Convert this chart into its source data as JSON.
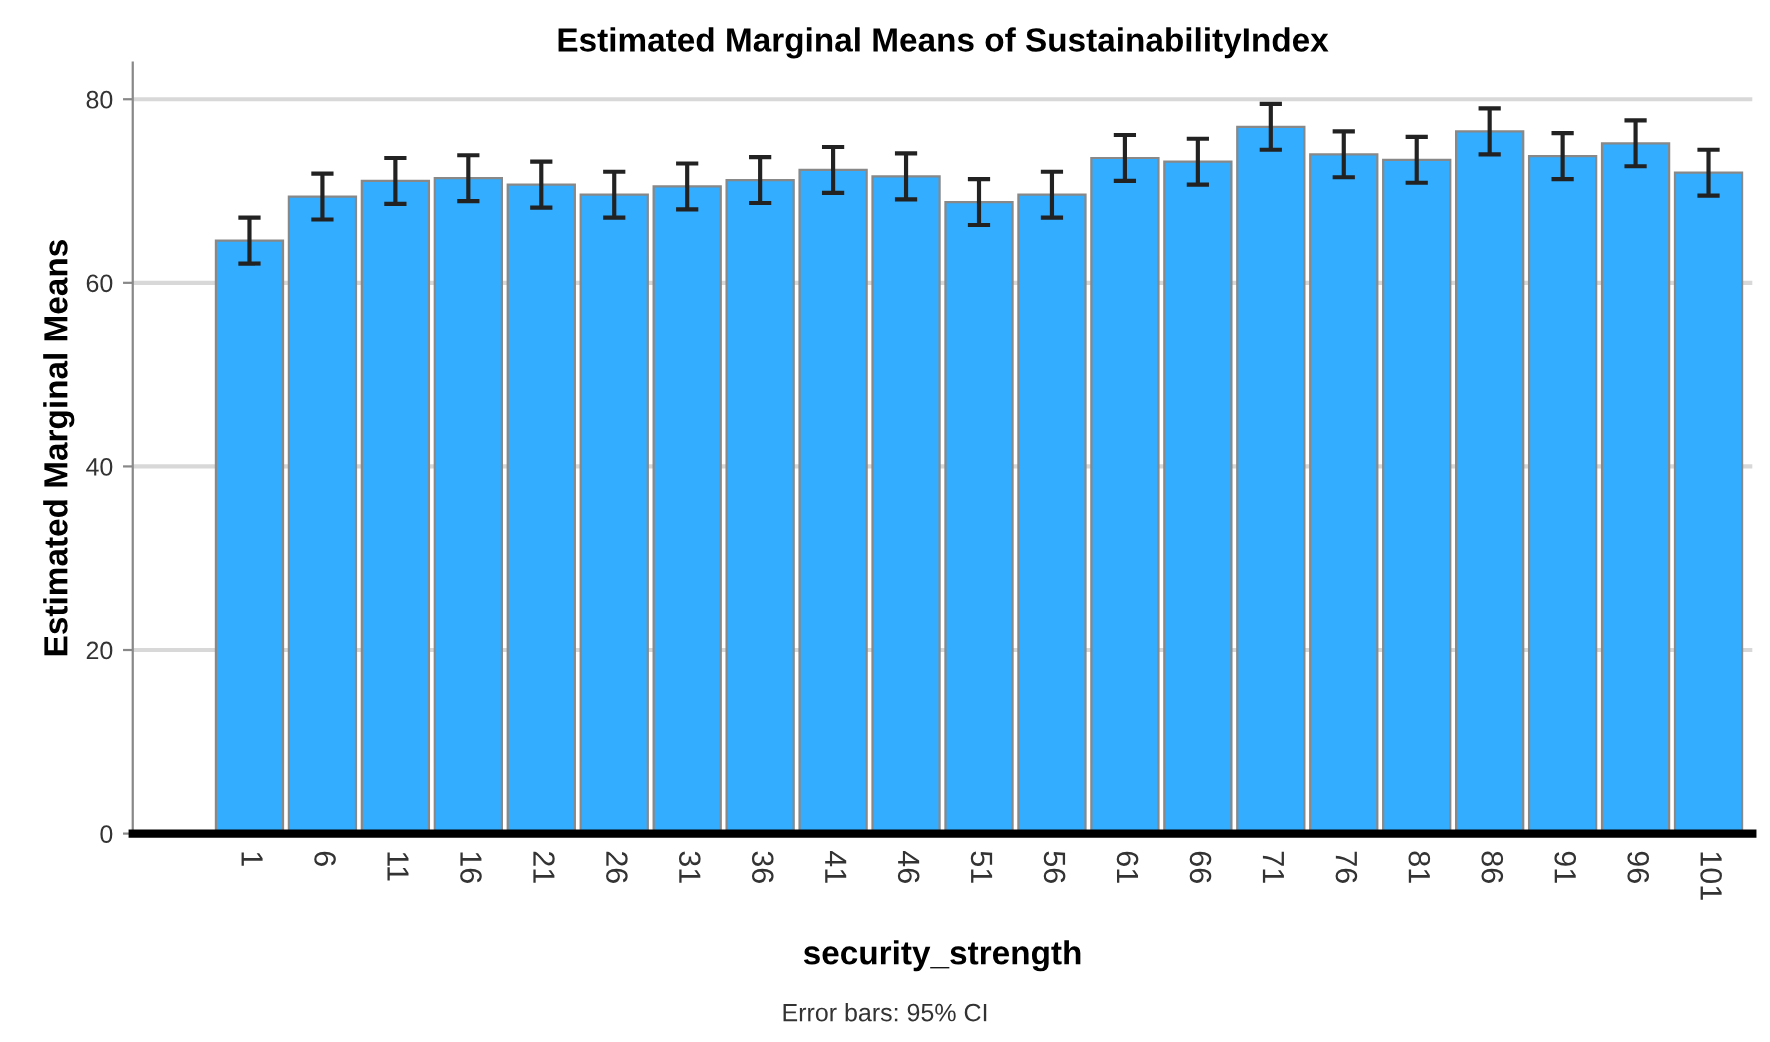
{
  "chart_data": {
    "type": "bar",
    "title": "Estimated Marginal Means of SustainabilityIndex",
    "xlabel": "security_strength",
    "ylabel": "Estimated Marginal Means",
    "categories": [
      "1",
      "6",
      "11",
      "16",
      "21",
      "26",
      "31",
      "36",
      "41",
      "46",
      "51",
      "56",
      "61",
      "66",
      "71",
      "76",
      "81",
      "86",
      "91",
      "96",
      "101"
    ],
    "values": [
      64.6,
      69.4,
      71.1,
      71.4,
      70.7,
      69.6,
      70.5,
      71.2,
      72.3,
      71.6,
      68.8,
      69.6,
      73.6,
      73.2,
      77.0,
      74.0,
      73.4,
      76.5,
      73.8,
      75.2,
      72.0
    ],
    "errors": [
      2.5,
      2.5,
      2.5,
      2.5,
      2.5,
      2.5,
      2.5,
      2.5,
      2.5,
      2.5,
      2.5,
      2.5,
      2.5,
      2.5,
      2.5,
      2.5,
      2.5,
      2.5,
      2.5,
      2.5,
      2.5
    ],
    "color": "#33adff",
    "ylim": [
      0,
      84
    ],
    "yticks": [
      0,
      20,
      40,
      60,
      80
    ],
    "grid": "y",
    "annotations": [
      "Error bars: 95% CI"
    ]
  }
}
